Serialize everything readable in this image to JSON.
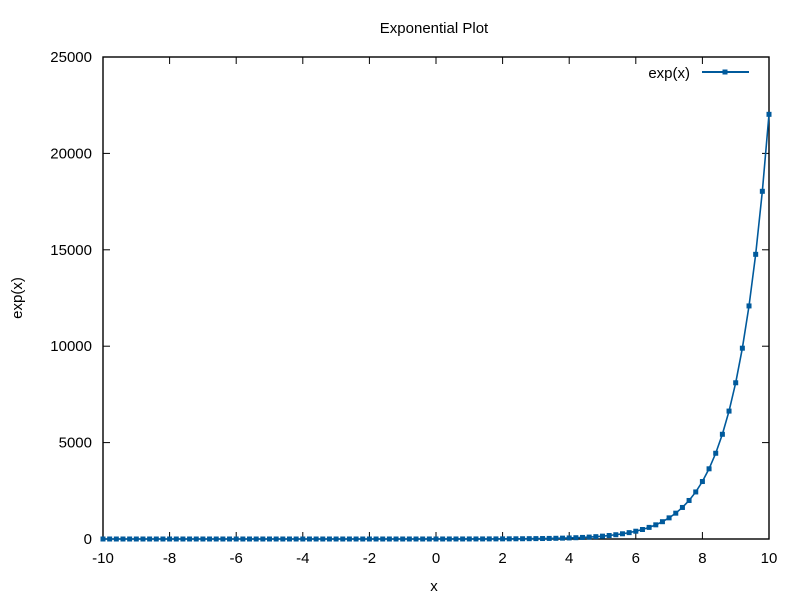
{
  "chart_data": {
    "type": "line",
    "title": "Exponential Plot",
    "xlabel": "x",
    "ylabel": "exp(x)",
    "xlim": [
      -10,
      10
    ],
    "ylim": [
      0,
      25000
    ],
    "x_ticks": [
      "-10",
      "-8",
      "-6",
      "-4",
      "-2",
      "0",
      "2",
      "4",
      "6",
      "8",
      "10"
    ],
    "y_ticks": [
      "0",
      "5000",
      "10000",
      "15000",
      "20000",
      "25000"
    ],
    "legend_position": "top-right",
    "grid": false,
    "series": [
      {
        "name": "exp(x)",
        "color": "#005a9c",
        "marker": "filled-square",
        "x_start": -10,
        "x_end": 10,
        "x_step": 0.2,
        "function": "exp"
      }
    ]
  }
}
